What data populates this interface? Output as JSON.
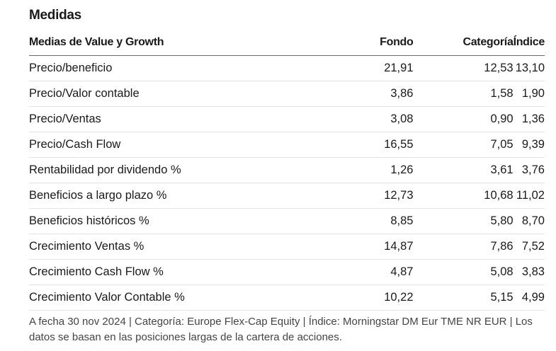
{
  "title": "Medidas",
  "table": {
    "headers": [
      "Medias de Value y Growth",
      "Fondo",
      "Categoría",
      "Índice"
    ],
    "rows": [
      {
        "label": "Precio/beneficio",
        "fondo": "21,91",
        "categoria": "12,53",
        "indice": "13,10"
      },
      {
        "label": "Precio/Valor contable",
        "fondo": "3,86",
        "categoria": "1,58",
        "indice": "1,90"
      },
      {
        "label": "Precio/Ventas",
        "fondo": "3,08",
        "categoria": "0,90",
        "indice": "1,36"
      },
      {
        "label": "Precio/Cash Flow",
        "fondo": "16,55",
        "categoria": "7,05",
        "indice": "9,39"
      },
      {
        "label": "Rentabilidad por dividendo %",
        "fondo": "1,26",
        "categoria": "3,61",
        "indice": "3,76"
      },
      {
        "label": "Beneficios a largo plazo %",
        "fondo": "12,73",
        "categoria": "10,68",
        "indice": "11,02"
      },
      {
        "label": "Beneficios históricos %",
        "fondo": "8,85",
        "categoria": "5,80",
        "indice": "8,70"
      },
      {
        "label": "Crecimiento Ventas %",
        "fondo": "14,87",
        "categoria": "7,86",
        "indice": "7,52"
      },
      {
        "label": "Crecimiento Cash Flow %",
        "fondo": "4,87",
        "categoria": "5,08",
        "indice": "3,83"
      },
      {
        "label": "Crecimiento Valor Contable %",
        "fondo": "10,22",
        "categoria": "5,15",
        "indice": "4,99"
      }
    ]
  },
  "footnote": "A fecha 30 nov 2024 | Categoría: Europe Flex-Cap Equity | Índice: Morningstar DM Eur TME NR EUR | Los datos se basan en las posiciones largas de la cartera de acciones."
}
